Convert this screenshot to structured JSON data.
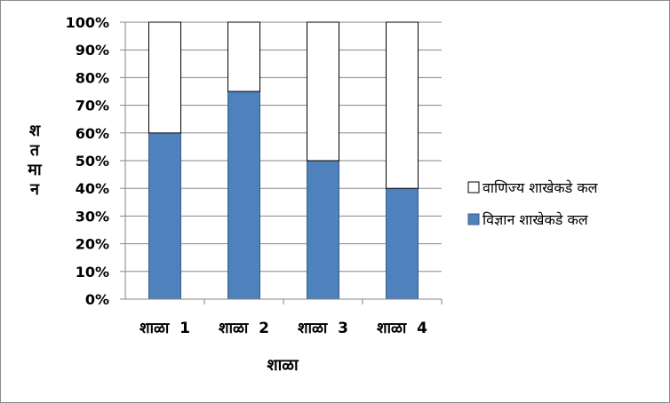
{
  "chart_data": {
    "type": "bar",
    "stacked": true,
    "percent": true,
    "categories": [
      "शाळा  1",
      "शाळा  2",
      "शाळा  3",
      "शाळा  4"
    ],
    "series": [
      {
        "name": "विज्ञान शाखेकडे कल",
        "values": [
          60,
          75,
          50,
          40
        ],
        "color": "#4f81bd"
      },
      {
        "name": "वाणिज्य शाखेकडे कल",
        "values": [
          40,
          25,
          50,
          60
        ],
        "color": "#ffffff"
      }
    ],
    "xlabel": "शाळा",
    "ylabel_chars": [
      "श",
      "त",
      "मा",
      "न"
    ],
    "y_ticks": [
      "0%",
      "10%",
      "20%",
      "30%",
      "40%",
      "50%",
      "60%",
      "70%",
      "80%",
      "90%",
      "100%"
    ],
    "ylim": [
      0,
      100
    ],
    "grid": true,
    "legend_position": "right"
  }
}
